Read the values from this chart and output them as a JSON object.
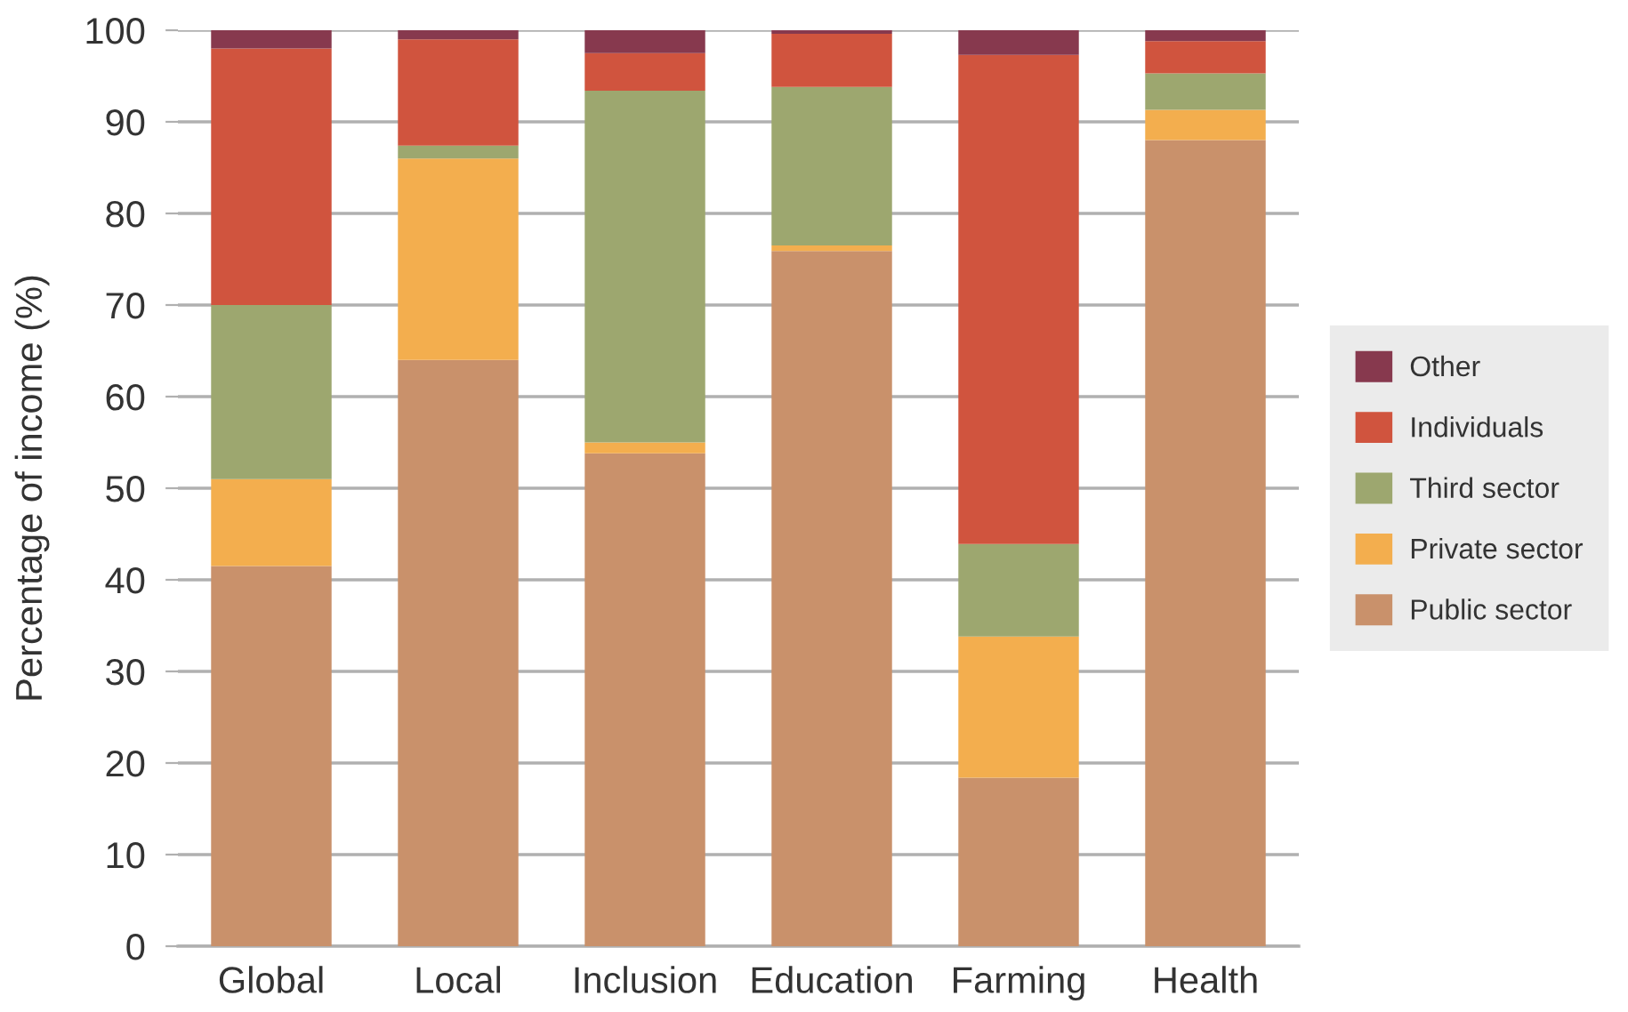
{
  "chart_data": {
    "type": "bar",
    "stacked": true,
    "ylabel": "Percentage of income (%)",
    "categories": [
      "Global",
      "Local",
      "Inclusion",
      "Education",
      "Farming",
      "Health"
    ],
    "series": [
      {
        "name": "Public sector",
        "color": "#c9916b",
        "values": [
          41.5,
          64,
          53.8,
          75.9,
          18.4,
          88
        ]
      },
      {
        "name": "Private sector",
        "color": "#f3ae4e",
        "values": [
          9.5,
          22,
          1.2,
          0.6,
          15.4,
          3.3
        ]
      },
      {
        "name": "Third sector",
        "color": "#9da76f",
        "values": [
          19,
          1.4,
          38.4,
          17.3,
          10.1,
          4.0
        ]
      },
      {
        "name": "Individuals",
        "color": "#d0543e",
        "values": [
          28,
          11.6,
          4.1,
          5.8,
          53.4,
          3.5
        ]
      },
      {
        "name": "Other",
        "color": "#87394e",
        "values": [
          2,
          1,
          2.5,
          0.4,
          2.7,
          1.2
        ]
      }
    ],
    "ylim": [
      0,
      100
    ],
    "yticks": [
      0,
      10,
      20,
      30,
      40,
      50,
      60,
      70,
      80,
      90,
      100
    ],
    "grid": "y",
    "legend": "right"
  }
}
